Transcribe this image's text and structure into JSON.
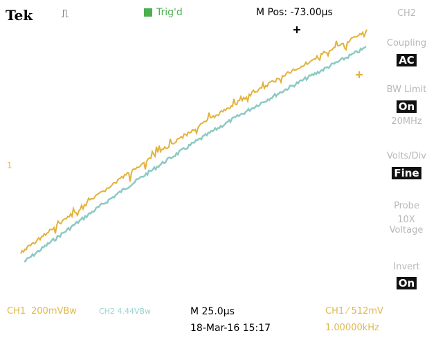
{
  "header": {
    "brand": "Tek",
    "trigger_status": "Trig'd",
    "position": "M Pos: -73.00µs"
  },
  "channel_marker": "1",
  "menu": {
    "title": "CH2",
    "items": [
      {
        "label": "Coupling",
        "value": "AC"
      },
      {
        "label": "BW Limit",
        "value": "On",
        "note": "20MHz"
      },
      {
        "label": "Volts/Div",
        "value": "Fine"
      },
      {
        "label": "Probe",
        "note": "10X Voltage"
      },
      {
        "label": "Invert",
        "value": "On"
      }
    ]
  },
  "footer": {
    "ch1_label": "CH1",
    "ch1_scale": "200mVBw",
    "ch2_scale": "CH2 4.44VBw",
    "timebase": "M 25.0µs",
    "datetime": "18-Mar-16 15:17",
    "trigger": "CH1 ⁄ 512mV",
    "frequency": "1.00000kHz"
  }
}
